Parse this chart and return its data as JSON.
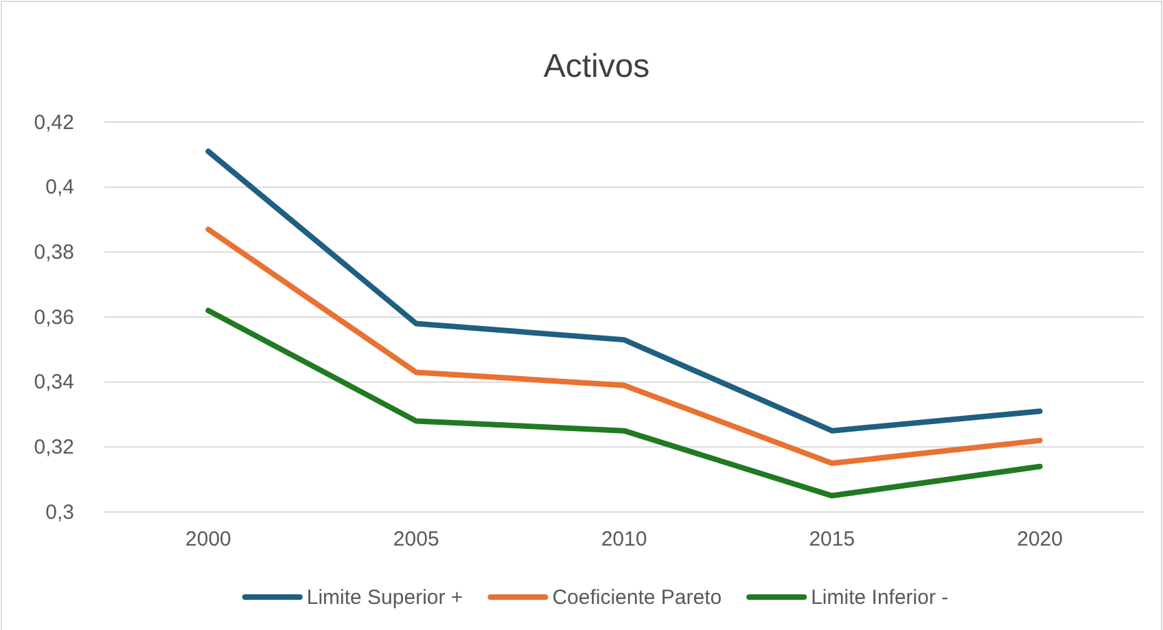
{
  "chart_data": {
    "type": "line",
    "title": "Activos",
    "categories": [
      "2000",
      "2005",
      "2010",
      "2015",
      "2020"
    ],
    "series": [
      {
        "name": "Limite Superior +",
        "color": "#1f5f82",
        "values": [
          0.411,
          0.358,
          0.353,
          0.325,
          0.331
        ]
      },
      {
        "name": "Coeficiente Pareto",
        "color": "#e97132",
        "values": [
          0.387,
          0.343,
          0.339,
          0.315,
          0.322
        ]
      },
      {
        "name": "Limite Inferior -",
        "color": "#217a21",
        "values": [
          0.362,
          0.328,
          0.325,
          0.305,
          0.314
        ]
      }
    ],
    "ylim": [
      0.3,
      0.42
    ],
    "yticks": [
      {
        "value": 0.3,
        "label": "0,3"
      },
      {
        "value": 0.32,
        "label": "0,32"
      },
      {
        "value": 0.34,
        "label": "0,34"
      },
      {
        "value": 0.36,
        "label": "0,36"
      },
      {
        "value": 0.38,
        "label": "0,38"
      },
      {
        "value": 0.4,
        "label": "0,4"
      },
      {
        "value": 0.42,
        "label": "0,42"
      }
    ],
    "grid": "y",
    "legend": "bottom",
    "marker": "none",
    "line_style": "solid"
  }
}
